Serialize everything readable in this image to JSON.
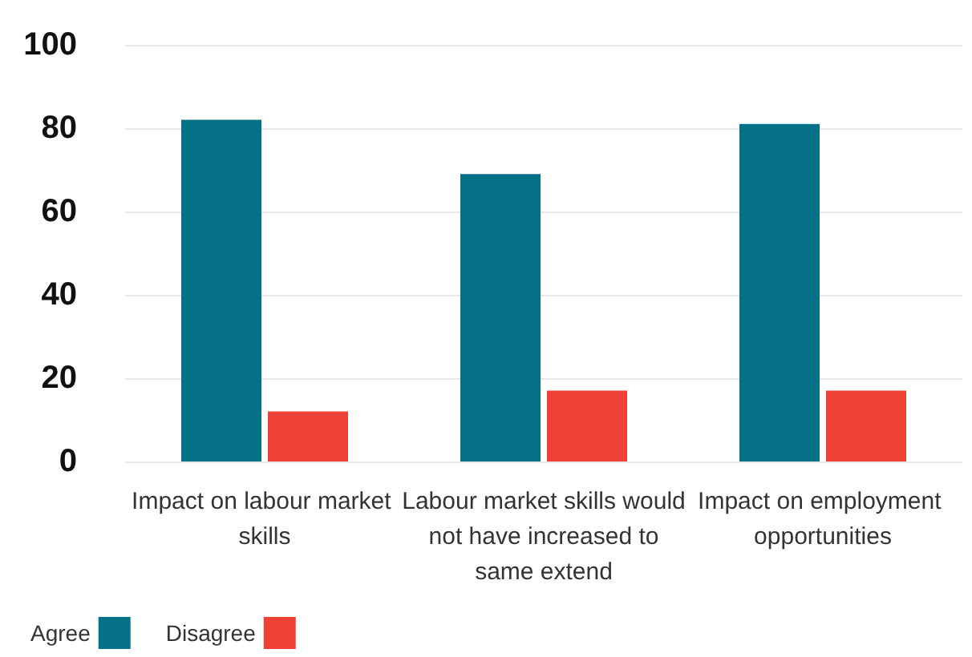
{
  "chart_data": {
    "type": "bar",
    "categories": [
      "Impact on labour market skills",
      "Labour market skills would not have increased to same extend",
      "Impact on employment opportunities"
    ],
    "series": [
      {
        "name": "Agree",
        "color": "#047187",
        "values": [
          82,
          69,
          81
        ]
      },
      {
        "name": "Disagree",
        "color": "#ef4136",
        "values": [
          12,
          17,
          17
        ]
      }
    ],
    "ylim": [
      0,
      100
    ],
    "yticks": [
      0,
      20,
      40,
      60,
      80,
      100
    ],
    "grid": "y",
    "legend": "bottom left"
  }
}
